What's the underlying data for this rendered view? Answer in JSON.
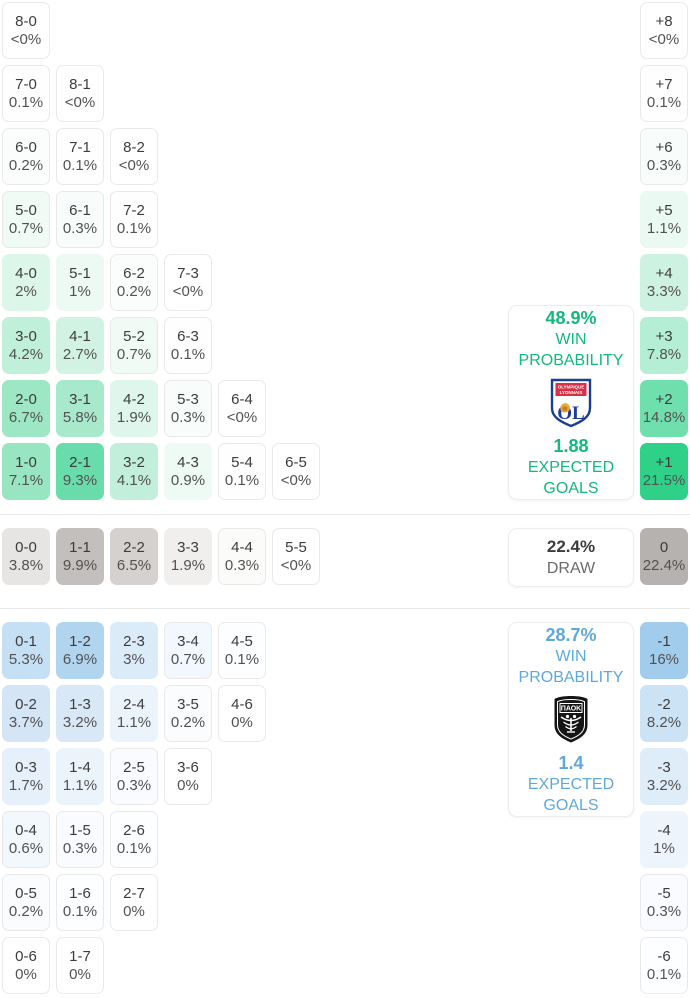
{
  "accent": {
    "home_green": "#12b97b",
    "away_blue": "#5fa9da",
    "max_green": "#2fd189",
    "max_blue": "#a2cceb",
    "draw_gray": "#b5b2af",
    "cell_border": "#e9e9e9"
  },
  "grid": {
    "home_scores": [
      {
        "score": "8-0",
        "pct": "<0%",
        "col": 0,
        "row": 0,
        "bg": "#ffffff"
      },
      {
        "score": "7-0",
        "pct": "0.1%",
        "col": 0,
        "row": 1,
        "bg": "#fdfefd"
      },
      {
        "score": "8-1",
        "pct": "<0%",
        "col": 1,
        "row": 1,
        "bg": "#ffffff"
      },
      {
        "score": "6-0",
        "pct": "0.2%",
        "col": 0,
        "row": 2,
        "bg": "#fbfdfc"
      },
      {
        "score": "7-1",
        "pct": "0.1%",
        "col": 1,
        "row": 2,
        "bg": "#fdfefd"
      },
      {
        "score": "8-2",
        "pct": "<0%",
        "col": 2,
        "row": 2,
        "bg": "#ffffff"
      },
      {
        "score": "5-0",
        "pct": "0.7%",
        "col": 0,
        "row": 3,
        "bg": "#f1fbf6"
      },
      {
        "score": "6-1",
        "pct": "0.3%",
        "col": 1,
        "row": 3,
        "bg": "#f8fdfb"
      },
      {
        "score": "7-2",
        "pct": "0.1%",
        "col": 2,
        "row": 3,
        "bg": "#fdfefd"
      },
      {
        "score": "4-0",
        "pct": "2%",
        "col": 0,
        "row": 4,
        "bg": "#ddf6ea"
      },
      {
        "score": "5-1",
        "pct": "1%",
        "col": 1,
        "row": 4,
        "bg": "#ecfaf3"
      },
      {
        "score": "6-2",
        "pct": "0.2%",
        "col": 2,
        "row": 4,
        "bg": "#fbfdfc"
      },
      {
        "score": "7-3",
        "pct": "<0%",
        "col": 3,
        "row": 4,
        "bg": "#ffffff"
      },
      {
        "score": "3-0",
        "pct": "4.2%",
        "col": 0,
        "row": 5,
        "bg": "#c0efda"
      },
      {
        "score": "4-1",
        "pct": "2.7%",
        "col": 1,
        "row": 5,
        "bg": "#d2f3e4"
      },
      {
        "score": "5-2",
        "pct": "0.7%",
        "col": 2,
        "row": 5,
        "bg": "#f1fbf6"
      },
      {
        "score": "6-3",
        "pct": "0.1%",
        "col": 3,
        "row": 5,
        "bg": "#fdfefd"
      },
      {
        "score": "2-0",
        "pct": "6.7%",
        "col": 0,
        "row": 6,
        "bg": "#9de7c4"
      },
      {
        "score": "3-1",
        "pct": "5.8%",
        "col": 1,
        "row": 6,
        "bg": "#a9e9cb"
      },
      {
        "score": "4-2",
        "pct": "1.9%",
        "col": 2,
        "row": 6,
        "bg": "#def6eb"
      },
      {
        "score": "5-3",
        "pct": "0.3%",
        "col": 3,
        "row": 6,
        "bg": "#f8fdfb"
      },
      {
        "score": "6-4",
        "pct": "<0%",
        "col": 4,
        "row": 6,
        "bg": "#ffffff"
      },
      {
        "score": "1-0",
        "pct": "7.1%",
        "col": 0,
        "row": 7,
        "bg": "#97e6c1"
      },
      {
        "score": "2-1",
        "pct": "9.3%",
        "col": 1,
        "row": 7,
        "bg": "#68dcab"
      },
      {
        "score": "3-2",
        "pct": "4.1%",
        "col": 2,
        "row": 7,
        "bg": "#c1efdb"
      },
      {
        "score": "4-3",
        "pct": "0.9%",
        "col": 3,
        "row": 7,
        "bg": "#eefaf4"
      },
      {
        "score": "5-4",
        "pct": "0.1%",
        "col": 4,
        "row": 7,
        "bg": "#fdfefd"
      },
      {
        "score": "6-5",
        "pct": "<0%",
        "col": 5,
        "row": 7,
        "bg": "#ffffff"
      }
    ],
    "draw_scores": [
      {
        "score": "0-0",
        "pct": "3.8%",
        "col": 0,
        "row": 0,
        "bg": "#e7e5e3"
      },
      {
        "score": "1-1",
        "pct": "9.9%",
        "col": 1,
        "row": 0,
        "bg": "#c2bfbc"
      },
      {
        "score": "2-2",
        "pct": "6.5%",
        "col": 2,
        "row": 0,
        "bg": "#d4d1ce"
      },
      {
        "score": "3-3",
        "pct": "1.9%",
        "col": 3,
        "row": 0,
        "bg": "#f0efed"
      },
      {
        "score": "4-4",
        "pct": "0.3%",
        "col": 4,
        "row": 0,
        "bg": "#fbfbfa"
      },
      {
        "score": "5-5",
        "pct": "<0%",
        "col": 5,
        "row": 0,
        "bg": "#ffffff"
      }
    ],
    "away_scores": [
      {
        "score": "0-1",
        "pct": "5.3%",
        "col": 0,
        "row": 0,
        "bg": "#c5dff4"
      },
      {
        "score": "1-2",
        "pct": "6.9%",
        "col": 1,
        "row": 0,
        "bg": "#b2d5ef"
      },
      {
        "score": "2-3",
        "pct": "3%",
        "col": 2,
        "row": 0,
        "bg": "#dcebf8"
      },
      {
        "score": "3-4",
        "pct": "0.7%",
        "col": 3,
        "row": 0,
        "bg": "#f2f8fd"
      },
      {
        "score": "4-5",
        "pct": "0.1%",
        "col": 4,
        "row": 0,
        "bg": "#fdfeff"
      },
      {
        "score": "0-2",
        "pct": "3.7%",
        "col": 0,
        "row": 1,
        "bg": "#d4e5f6"
      },
      {
        "score": "1-3",
        "pct": "3.2%",
        "col": 1,
        "row": 1,
        "bg": "#d9e8f7"
      },
      {
        "score": "2-4",
        "pct": "1.1%",
        "col": 2,
        "row": 1,
        "bg": "#ecf4fb"
      },
      {
        "score": "3-5",
        "pct": "0.2%",
        "col": 3,
        "row": 1,
        "bg": "#fafcfe"
      },
      {
        "score": "4-6",
        "pct": "0%",
        "col": 4,
        "row": 1,
        "bg": "#ffffff"
      },
      {
        "score": "0-3",
        "pct": "1.7%",
        "col": 0,
        "row": 2,
        "bg": "#e6f0fa"
      },
      {
        "score": "1-4",
        "pct": "1.1%",
        "col": 1,
        "row": 2,
        "bg": "#ecf4fb"
      },
      {
        "score": "2-5",
        "pct": "0.3%",
        "col": 2,
        "row": 2,
        "bg": "#f9fbfe"
      },
      {
        "score": "3-6",
        "pct": "0%",
        "col": 3,
        "row": 2,
        "bg": "#ffffff"
      },
      {
        "score": "0-4",
        "pct": "0.6%",
        "col": 0,
        "row": 3,
        "bg": "#f3f8fd"
      },
      {
        "score": "1-5",
        "pct": "0.3%",
        "col": 1,
        "row": 3,
        "bg": "#f9fbfe"
      },
      {
        "score": "2-6",
        "pct": "0.1%",
        "col": 2,
        "row": 3,
        "bg": "#fdfeff"
      },
      {
        "score": "0-5",
        "pct": "0.2%",
        "col": 0,
        "row": 4,
        "bg": "#fafcfe"
      },
      {
        "score": "1-6",
        "pct": "0.1%",
        "col": 1,
        "row": 4,
        "bg": "#fdfeff"
      },
      {
        "score": "2-7",
        "pct": "0%",
        "col": 2,
        "row": 4,
        "bg": "#ffffff"
      },
      {
        "score": "0-6",
        "pct": "0%",
        "col": 0,
        "row": 5,
        "bg": "#ffffff"
      },
      {
        "score": "1-7",
        "pct": "0%",
        "col": 1,
        "row": 5,
        "bg": "#ffffff"
      }
    ],
    "home_diff": [
      {
        "score": "+8",
        "pct": "<0%",
        "col": 0,
        "row": 0,
        "bg": "#ffffff"
      },
      {
        "score": "+7",
        "pct": "0.1%",
        "col": 0,
        "row": 1,
        "bg": "#fdfefd"
      },
      {
        "score": "+6",
        "pct": "0.3%",
        "col": 0,
        "row": 2,
        "bg": "#f8fdfb"
      },
      {
        "score": "+5",
        "pct": "1.1%",
        "col": 0,
        "row": 3,
        "bg": "#eafaf2"
      },
      {
        "score": "+4",
        "pct": "3.3%",
        "col": 0,
        "row": 4,
        "bg": "#cdf2e1"
      },
      {
        "score": "+3",
        "pct": "7.8%",
        "col": 0,
        "row": 5,
        "bg": "#b4eed4"
      },
      {
        "score": "+2",
        "pct": "14.8%",
        "col": 0,
        "row": 6,
        "bg": "#70dfae"
      },
      {
        "score": "+1",
        "pct": "21.5%",
        "col": 0,
        "row": 7,
        "bg": "#2fd189"
      }
    ],
    "draw_diff": [
      {
        "score": "0",
        "pct": "22.4%",
        "col": 0,
        "row": 0,
        "bg": "#b5b2af"
      }
    ],
    "away_diff": [
      {
        "score": "-1",
        "pct": "16%",
        "col": 0,
        "row": 0,
        "bg": "#a2cceb"
      },
      {
        "score": "-2",
        "pct": "8.2%",
        "col": 0,
        "row": 1,
        "bg": "#cce2f5"
      },
      {
        "score": "-3",
        "pct": "3.2%",
        "col": 0,
        "row": 2,
        "bg": "#dfedf9"
      },
      {
        "score": "-4",
        "pct": "1%",
        "col": 0,
        "row": 3,
        "bg": "#edf4fc"
      },
      {
        "score": "-5",
        "pct": "0.3%",
        "col": 0,
        "row": 4,
        "bg": "#f9fbfe"
      },
      {
        "score": "-6",
        "pct": "0.1%",
        "col": 0,
        "row": 5,
        "bg": "#fdfeff"
      }
    ]
  },
  "panels": {
    "home": {
      "win_pct": "48.9%",
      "win_label_line1": "WIN",
      "win_label_line2": "PROBABILITY",
      "team": "Olympique Lyonnais",
      "xg": "1.88",
      "xg_label_line1": "EXPECTED",
      "xg_label_line2": "GOALS"
    },
    "draw": {
      "pct": "22.4%",
      "label": "DRAW"
    },
    "away": {
      "win_pct": "28.7%",
      "win_label_line1": "WIN",
      "win_label_line2": "PROBABILITY",
      "team": "PAOK",
      "xg": "1.4",
      "xg_label_line1": "EXPECTED",
      "xg_label_line2": "GOALS"
    }
  },
  "logos": {
    "home": {
      "banner_line1": "OLYMPIQUE",
      "banner_line2": "LYONNAIS",
      "initials": "OL"
    },
    "away": {
      "name": "ΠΑΟΚ"
    }
  }
}
